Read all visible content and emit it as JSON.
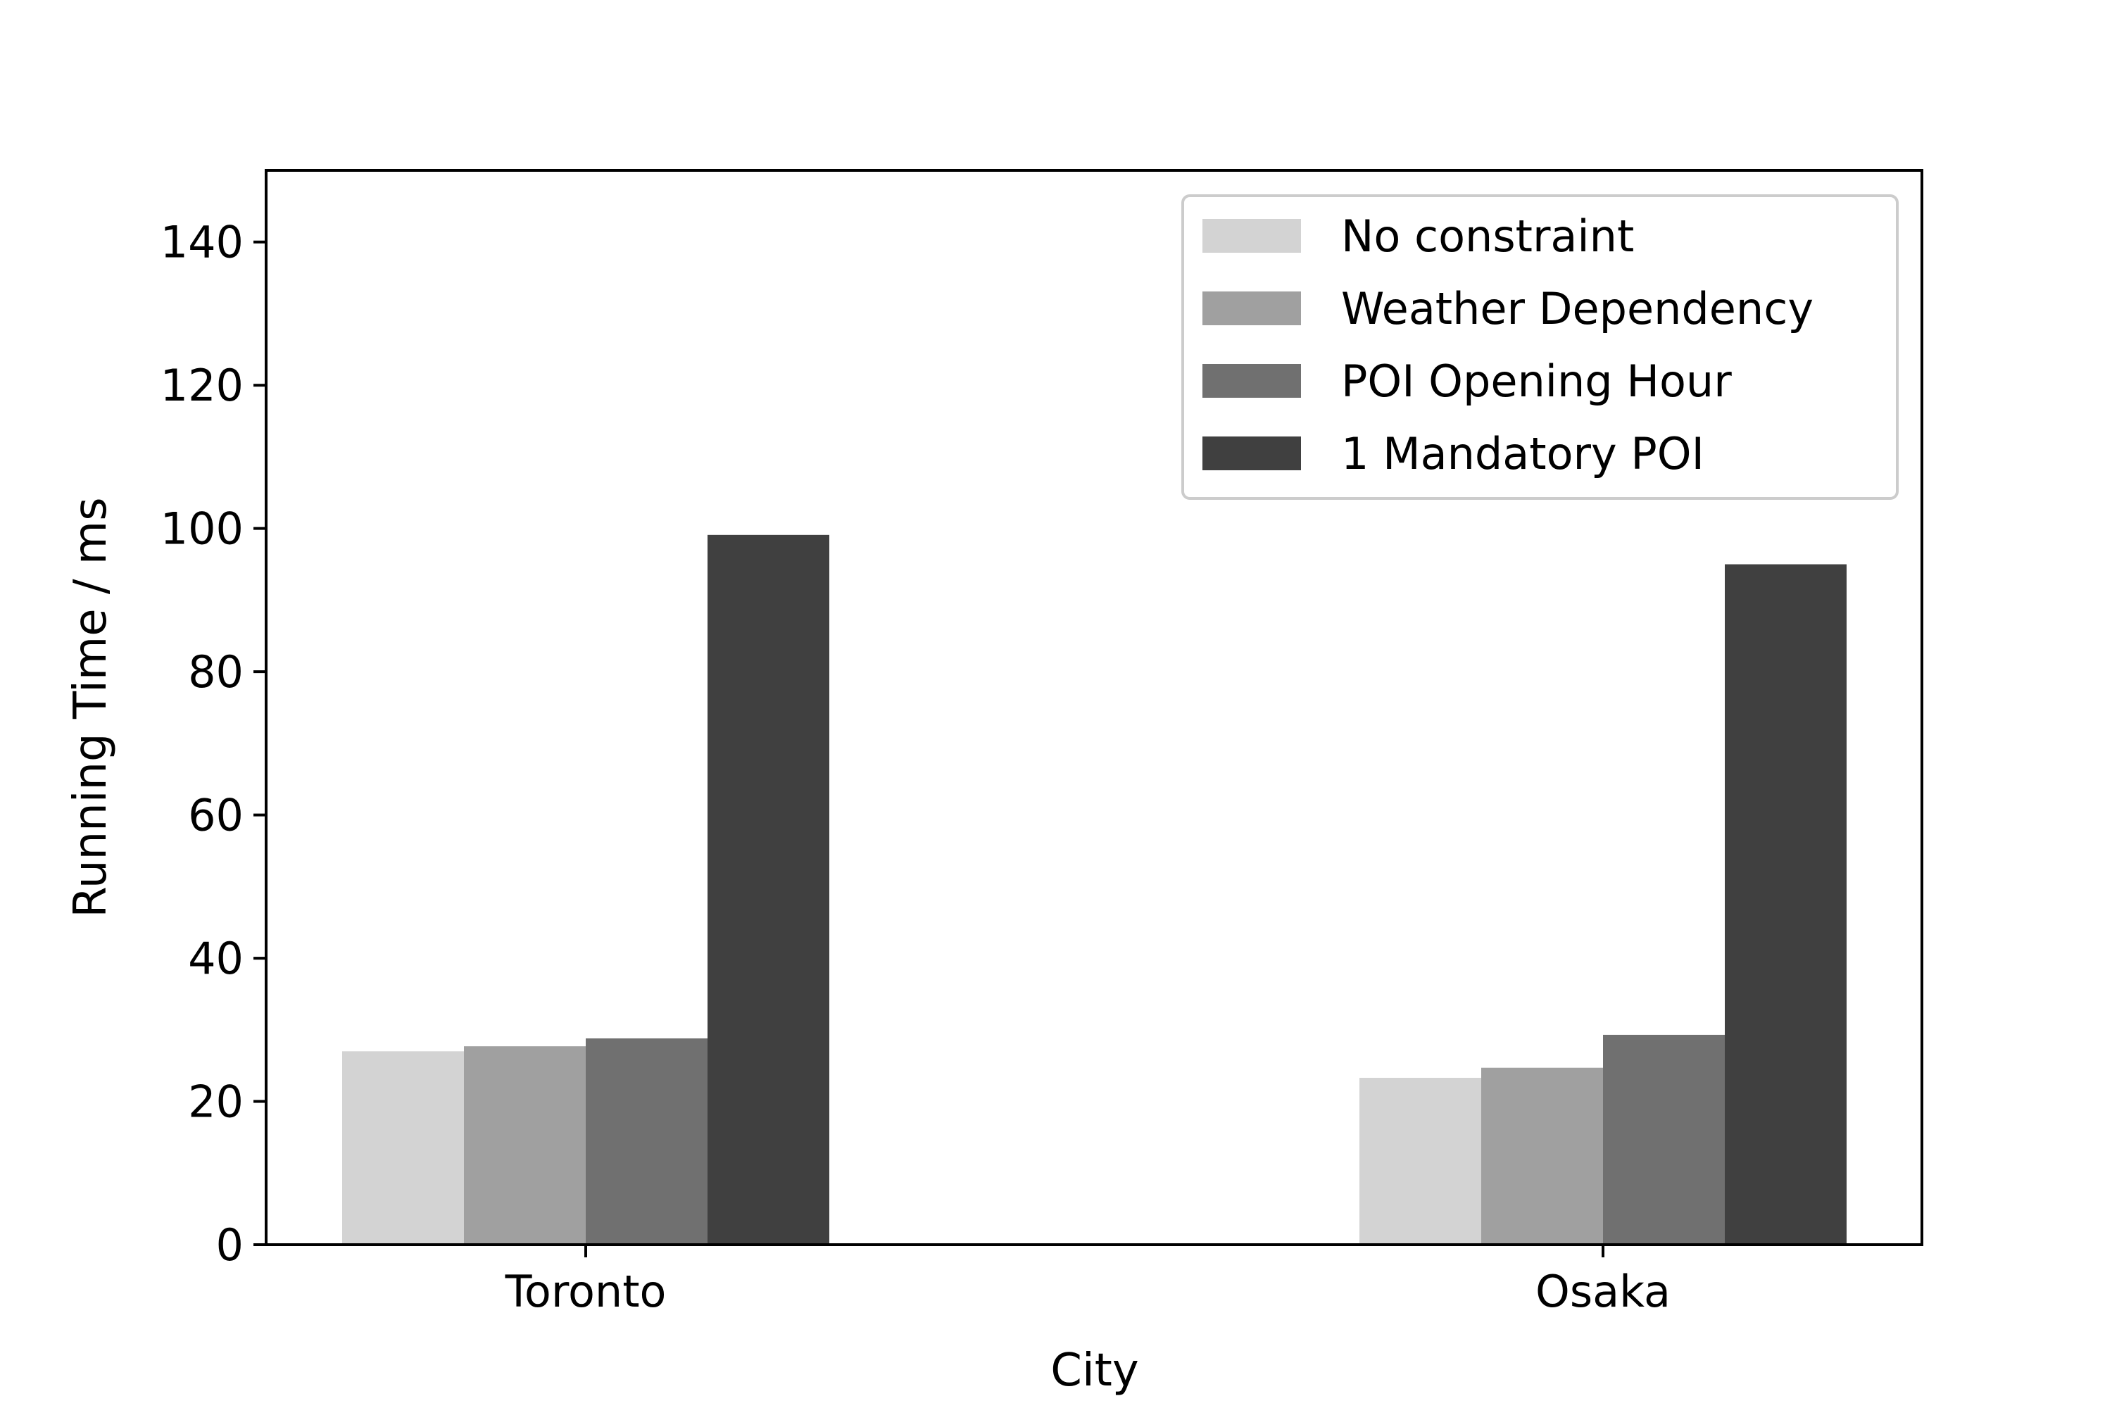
{
  "chart_data": {
    "type": "bar",
    "title": "",
    "xlabel": "City",
    "ylabel": "Running Time / ms",
    "categories": [
      "Toronto",
      "Osaka"
    ],
    "series": [
      {
        "name": "No constraint",
        "color": "#d3d3d3",
        "values": [
          27.0,
          23.3
        ]
      },
      {
        "name": "Weather Dependency",
        "color": "#a0a0a0",
        "values": [
          27.7,
          24.7
        ]
      },
      {
        "name": "POI Opening Hour",
        "color": "#707070",
        "values": [
          28.8,
          29.3
        ]
      },
      {
        "name": "1 Mandatory POI",
        "color": "#404040",
        "values": [
          99.1,
          95.0
        ]
      }
    ],
    "ylim": [
      0,
      150
    ],
    "yticks": [
      0,
      20,
      40,
      60,
      80,
      100,
      120,
      140
    ],
    "grid": false,
    "legend_position": "top-right"
  }
}
